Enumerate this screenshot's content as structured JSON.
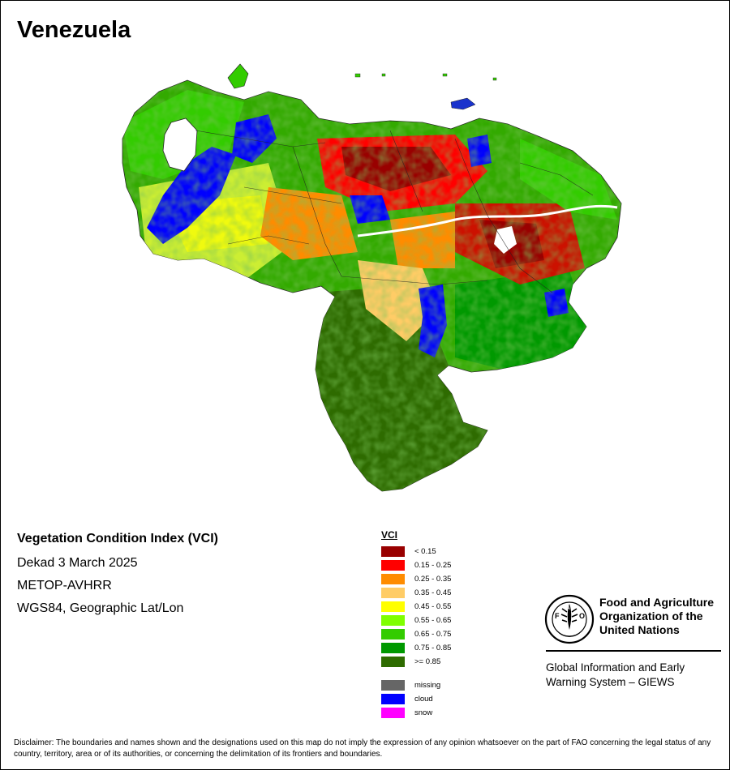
{
  "map": {
    "title": "Venezuela"
  },
  "info": {
    "index_title": "Vegetation Condition Index (VCI)",
    "period": "Dekad 3 March 2025",
    "sensor": "METOP-AVHRR",
    "projection": "WGS84, Geographic Lat/Lon"
  },
  "legend": {
    "title": "VCI",
    "classes": [
      {
        "label": "< 0.15",
        "color": "#990000"
      },
      {
        "label": "0.15 - 0.25",
        "color": "#ff0000"
      },
      {
        "label": "0.25 - 0.35",
        "color": "#ff8c00"
      },
      {
        "label": "0.35 - 0.45",
        "color": "#ffcc66"
      },
      {
        "label": "0.45 - 0.55",
        "color": "#ffff00"
      },
      {
        "label": "0.55 - 0.65",
        "color": "#7fff00"
      },
      {
        "label": "0.65 - 0.75",
        "color": "#33cc00"
      },
      {
        "label": "0.75 - 0.85",
        "color": "#009900"
      },
      {
        "label": ">= 0.85",
        "color": "#2e6b00"
      }
    ],
    "special": [
      {
        "label": "missing",
        "color": "#666666"
      },
      {
        "label": "cloud",
        "color": "#0000ff"
      },
      {
        "label": "snow",
        "color": "#ff00ff"
      }
    ]
  },
  "fao": {
    "org_line1": "Food and Agriculture",
    "org_line2": "Organization of the",
    "org_line3": "United Nations",
    "giews_line1": "Global Information and Early",
    "giews_line2": "Warning System – GIEWS"
  },
  "disclaimer": "Disclaimer: The boundaries and names shown and the designations used on this map do not imply the expression of any opinion whatsoever on the part of FAO concerning the legal status of any country, territory, area or of its authorities, or concerning the delimitation of its frontiers and boundaries."
}
